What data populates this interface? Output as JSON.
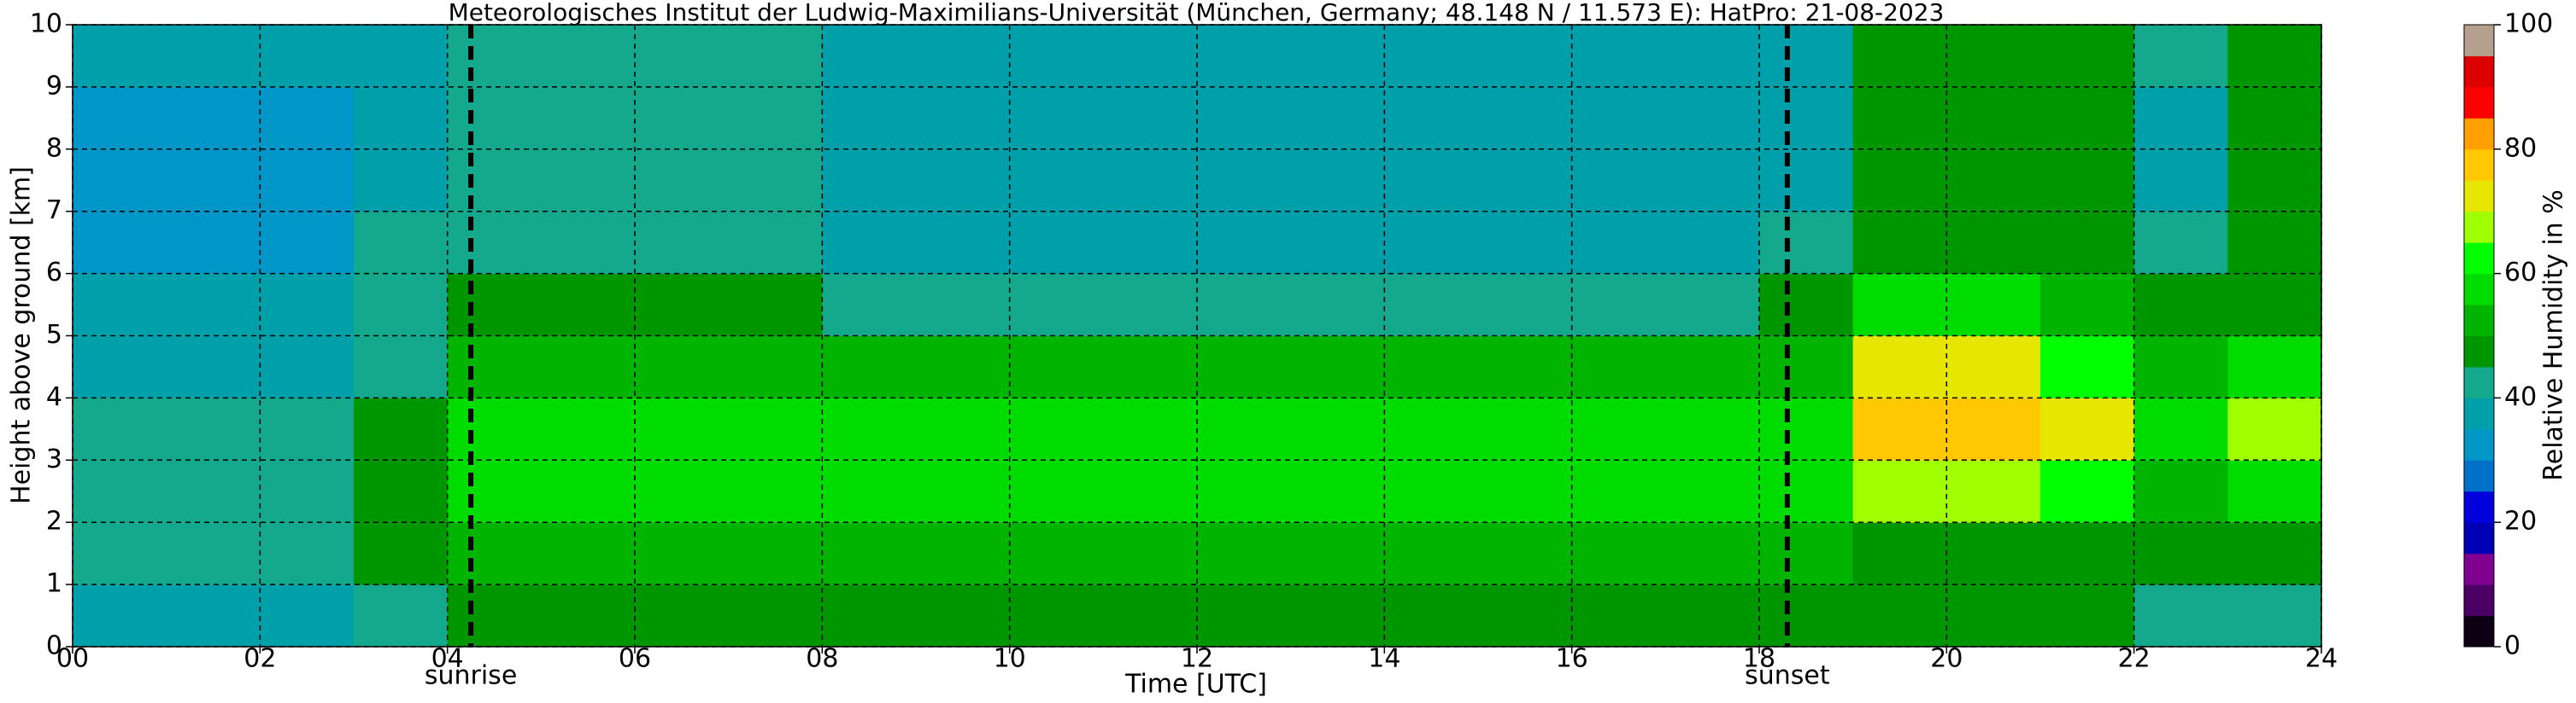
{
  "chart_data": {
    "type": "heatmap",
    "title": "Meteorologisches Institut der Ludwig-Maximilians-Universität (München, Germany; 48.148 N / 11.573 E):    HatPro: 21-08-2023",
    "xlabel": "Time [UTC]",
    "ylabel": "Height above ground [km]",
    "x_edges": [
      0,
      1,
      2,
      3,
      4,
      5,
      6,
      7,
      8,
      9,
      10,
      11,
      12,
      13,
      14,
      15,
      16,
      17,
      18,
      19,
      20,
      21,
      22,
      23,
      24
    ],
    "y_edges": [
      0,
      1,
      2,
      3,
      4,
      5,
      6,
      7,
      8,
      9,
      10
    ],
    "z": [
      [
        38,
        38,
        38,
        42,
        48,
        48,
        48,
        48,
        46,
        46,
        46,
        46,
        46,
        46,
        46,
        46,
        46,
        46,
        45,
        45,
        45,
        45,
        40,
        42
      ],
      [
        40,
        40,
        40,
        45,
        52,
        52,
        52,
        52,
        52,
        52,
        52,
        52,
        52,
        52,
        52,
        52,
        52,
        52,
        50,
        48,
        48,
        48,
        45,
        48
      ],
      [
        44,
        44,
        44,
        48,
        56,
        56,
        56,
        56,
        57,
        57,
        57,
        57,
        57,
        57,
        57,
        57,
        57,
        57,
        55,
        65,
        65,
        60,
        52,
        58
      ],
      [
        42,
        42,
        42,
        47,
        56,
        56,
        56,
        56,
        57,
        57,
        57,
        57,
        57,
        57,
        57,
        57,
        57,
        57,
        55,
        78,
        78,
        70,
        55,
        65
      ],
      [
        38,
        38,
        38,
        44,
        52,
        52,
        52,
        52,
        54,
        54,
        54,
        54,
        54,
        54,
        54,
        54,
        54,
        54,
        52,
        70,
        70,
        62,
        52,
        55
      ],
      [
        35,
        35,
        35,
        42,
        47,
        47,
        47,
        47,
        44,
        44,
        44,
        44,
        44,
        44,
        44,
        44,
        44,
        44,
        45,
        55,
        55,
        52,
        45,
        48
      ],
      [
        33,
        33,
        33,
        40,
        42,
        42,
        42,
        42,
        38,
        38,
        38,
        38,
        38,
        38,
        38,
        38,
        38,
        38,
        40,
        48,
        48,
        47,
        40,
        46
      ],
      [
        33,
        33,
        33,
        38,
        40,
        40,
        40,
        40,
        36,
        36,
        36,
        36,
        36,
        36,
        36,
        36,
        36,
        36,
        38,
        47,
        47,
        47,
        38,
        46
      ],
      [
        34,
        34,
        34,
        38,
        40,
        40,
        40,
        40,
        36,
        36,
        36,
        36,
        36,
        36,
        36,
        36,
        36,
        36,
        38,
        47,
        47,
        47,
        38,
        46
      ],
      [
        35,
        35,
        35,
        38,
        40,
        40,
        40,
        40,
        38,
        38,
        38,
        38,
        38,
        38,
        38,
        38,
        38,
        38,
        38,
        47,
        47,
        47,
        40,
        46
      ]
    ],
    "xlim": [
      0,
      24
    ],
    "ylim": [
      0,
      10
    ],
    "xticks": [
      {
        "value": 0,
        "label": "00"
      },
      {
        "value": 2,
        "label": "02"
      },
      {
        "value": 4,
        "label": "04"
      },
      {
        "value": 6,
        "label": "06"
      },
      {
        "value": 8,
        "label": "08"
      },
      10,
      12,
      14,
      16,
      18,
      20,
      22,
      24
    ],
    "yticks": [
      0,
      1,
      2,
      3,
      4,
      5,
      6,
      7,
      8,
      9,
      10
    ],
    "grid": true,
    "annotations": [
      {
        "x": 4.25,
        "label": "sunrise"
      },
      {
        "x": 18.3,
        "label": "sunset"
      }
    ],
    "colorbar": {
      "label": "Relative Humidity in %",
      "bounds": [
        0,
        5,
        10,
        15,
        20,
        25,
        30,
        35,
        40,
        45,
        50,
        55,
        60,
        65,
        70,
        75,
        80,
        85,
        90,
        95,
        100
      ],
      "colors": [
        "#0c0012",
        "#4b0066",
        "#800090",
        "#0000b4",
        "#0000dc",
        "#0070c8",
        "#0096c8",
        "#00a0aa",
        "#14a88c",
        "#009600",
        "#00b400",
        "#00dc00",
        "#00ff00",
        "#a0ff00",
        "#e6e600",
        "#ffc800",
        "#ffa000",
        "#ff0000",
        "#dc0000",
        "#b4a08c"
      ],
      "ticks": [
        0,
        20,
        40,
        60,
        80,
        100
      ]
    }
  }
}
